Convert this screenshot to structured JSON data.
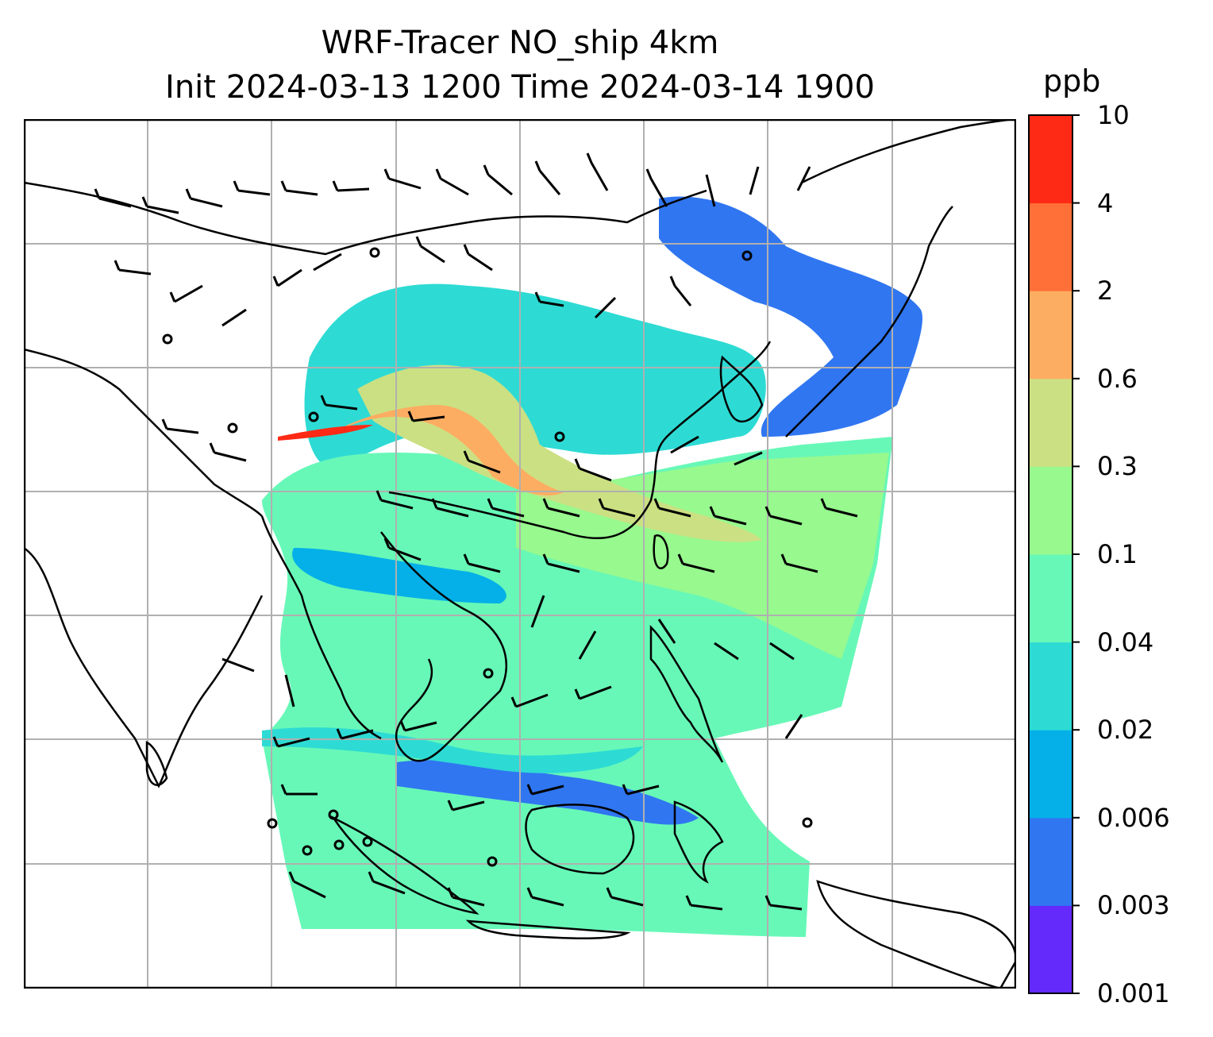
{
  "title": {
    "line1": "WRF-Tracer NO_ship 4km",
    "line2": "Init 2024-03-13 1200 Time 2024-03-14 1900"
  },
  "colorbar": {
    "unit": "ppb",
    "levels": [
      "0.001",
      "0.003",
      "0.006",
      "0.02",
      "0.04",
      "0.1",
      "0.3",
      "0.6",
      "2",
      "4",
      "10"
    ],
    "colors": [
      "#6429fb",
      "#3076f1",
      "#05b0e8",
      "#2ddbd4",
      "#67f8b7",
      "#97f98e",
      "#cbe083",
      "#fdad62",
      "#ff7038",
      "#ff2a16"
    ]
  },
  "map": {
    "gridlines": true,
    "overlays": [
      "coastlines",
      "wind-barbs",
      "NO_ship-concentration-field"
    ],
    "field_description_levels": {
      "background_over_ocean_south_china_sea": "0.1",
      "western_pacific_band": "0.3",
      "yellow_sea_peak": "2",
      "north_band_edge": "0.003"
    }
  }
}
